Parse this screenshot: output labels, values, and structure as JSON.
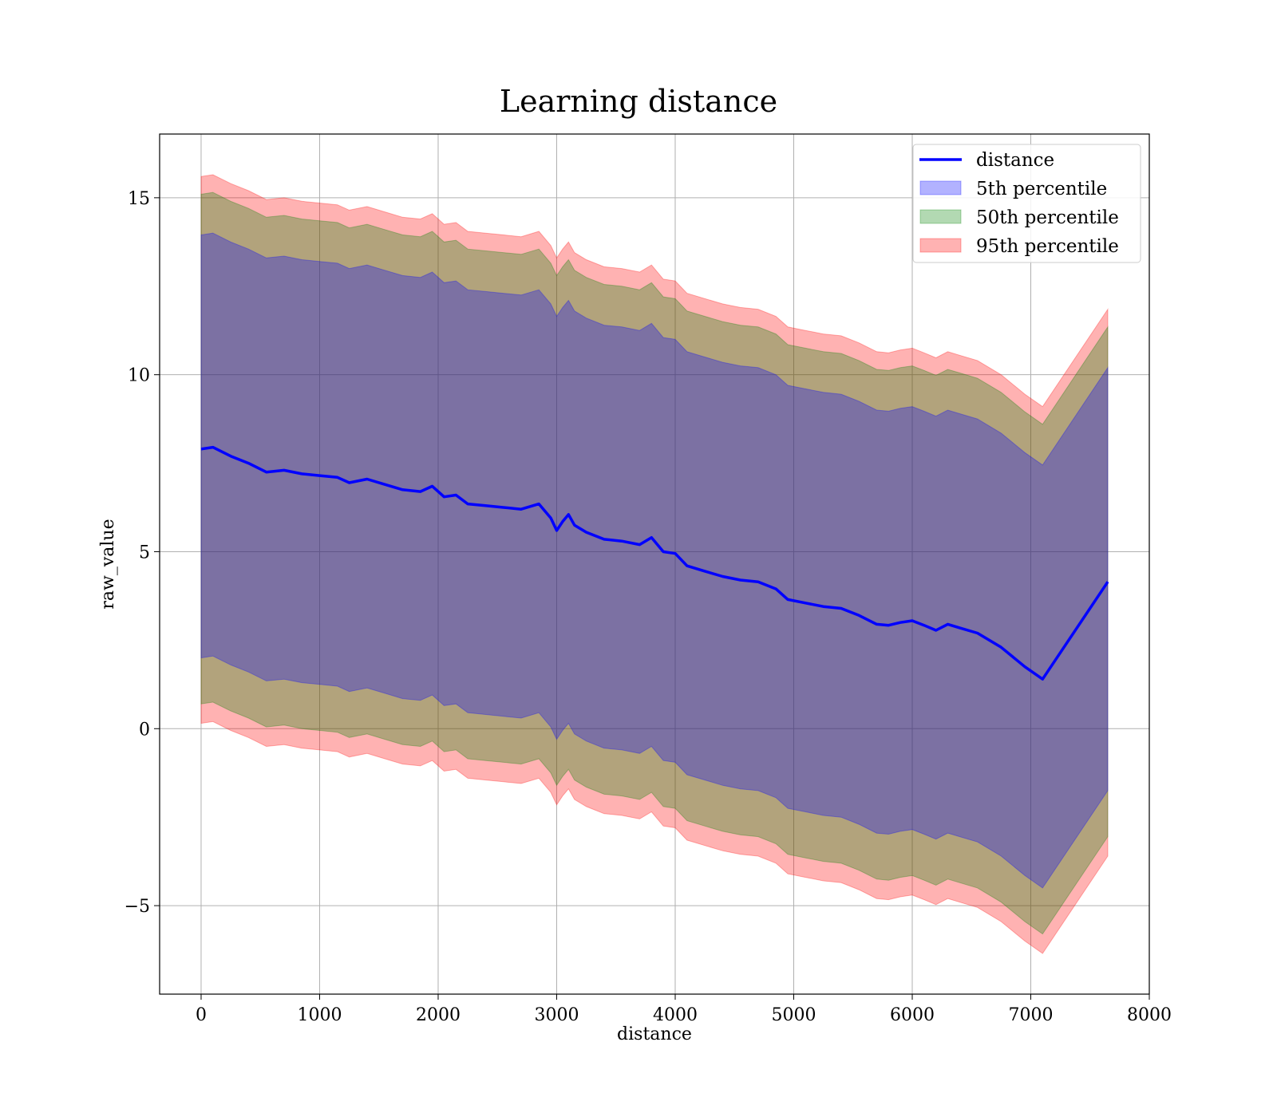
{
  "chart_data": {
    "type": "line",
    "title": "Learning distance",
    "xlabel": "distance",
    "ylabel": "raw_value",
    "xlim": [
      -350,
      8000
    ],
    "ylim": [
      -7.5,
      16.8
    ],
    "xticks": [
      0,
      1000,
      2000,
      3000,
      4000,
      5000,
      6000,
      7000,
      8000
    ],
    "yticks": [
      -5,
      0,
      5,
      10,
      15
    ],
    "ytick_labels": [
      "−5",
      "0",
      "5",
      "10",
      "15"
    ],
    "grid": true,
    "legend_position": "top-right",
    "x": [
      0,
      100,
      250,
      400,
      550,
      700,
      850,
      1000,
      1150,
      1250,
      1400,
      1550,
      1700,
      1850,
      1950,
      2050,
      2150,
      2250,
      2400,
      2550,
      2700,
      2850,
      2950,
      3000,
      3050,
      3100,
      3150,
      3250,
      3400,
      3550,
      3700,
      3800,
      3900,
      4000,
      4100,
      4250,
      4400,
      4550,
      4700,
      4850,
      4950,
      5100,
      5250,
      5400,
      5550,
      5700,
      5800,
      5900,
      6000,
      6100,
      6200,
      6300,
      6400,
      6550,
      6750,
      6950,
      7100,
      7650
    ],
    "series": [
      {
        "name": "distance",
        "color": "#0000ff",
        "values": [
          7.9,
          7.95,
          7.7,
          7.5,
          7.25,
          7.3,
          7.2,
          7.15,
          7.1,
          6.95,
          7.05,
          6.9,
          6.75,
          6.7,
          6.85,
          6.55,
          6.6,
          6.35,
          6.3,
          6.25,
          6.2,
          6.35,
          5.95,
          5.6,
          5.85,
          6.05,
          5.75,
          5.55,
          5.35,
          5.3,
          5.2,
          5.4,
          5.0,
          4.95,
          4.6,
          4.45,
          4.3,
          4.2,
          4.15,
          3.95,
          3.65,
          3.55,
          3.45,
          3.4,
          3.2,
          2.95,
          2.92,
          3.0,
          3.05,
          2.92,
          2.78,
          2.95,
          2.85,
          2.7,
          2.3,
          1.75,
          1.4,
          4.15
        ]
      },
      {
        "name": "5th percentile",
        "color": "#0000ff",
        "offset_upper": 6.05,
        "offset_lower": -5.9
      },
      {
        "name": "50th percentile",
        "color": "#008000",
        "offset_upper": 7.2,
        "offset_lower": -7.2
      },
      {
        "name": "95th percentile",
        "color": "#ff0000",
        "offset_upper": 7.7,
        "offset_lower": -7.75
      }
    ]
  }
}
